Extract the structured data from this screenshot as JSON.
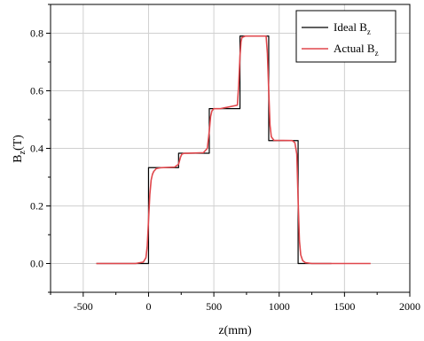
{
  "chart_data": {
    "type": "line",
    "xlabel": "z(mm)",
    "ylabel_main": "B",
    "ylabel_sub": "z",
    "ylabel_suffix": "(T)",
    "xlim": [
      -750,
      2000
    ],
    "ylim": [
      -0.1,
      0.9
    ],
    "xticks": [
      -500,
      0,
      500,
      1000,
      1500,
      2000
    ],
    "yticks": [
      0.0,
      0.2,
      0.4,
      0.6,
      0.8
    ],
    "ytick_labels": [
      "0.0",
      "0.2",
      "0.4",
      "0.6",
      "0.8"
    ],
    "grid": true,
    "legend_position": "top-right",
    "series": [
      {
        "name_main": "Ideal B",
        "name_sub": "z",
        "color": "#000000",
        "x": [
          -400,
          0,
          0,
          230,
          230,
          465,
          465,
          700,
          700,
          920,
          920,
          1145,
          1145,
          1400
        ],
        "y": [
          0,
          0,
          0.333,
          0.333,
          0.383,
          0.383,
          0.538,
          0.538,
          0.79,
          0.79,
          0.427,
          0.427,
          0,
          0
        ]
      },
      {
        "name_main": "Actual B",
        "name_sub": "z",
        "color": "#e0474c",
        "x": [
          -400,
          -100,
          -40,
          -20,
          -10,
          0,
          10,
          20,
          30,
          40,
          60,
          100,
          200,
          230,
          245,
          255,
          275,
          300,
          420,
          450,
          465,
          475,
          485,
          500,
          550,
          680,
          690,
          700,
          708,
          715,
          740,
          900,
          910,
          920,
          930,
          940,
          960,
          1100,
          1120,
          1135,
          1145,
          1155,
          1165,
          1180,
          1200,
          1250,
          1400,
          1700
        ],
        "y": [
          0,
          0,
          0.005,
          0.02,
          0.06,
          0.15,
          0.24,
          0.29,
          0.31,
          0.32,
          0.33,
          0.333,
          0.335,
          0.345,
          0.37,
          0.38,
          0.383,
          0.383,
          0.385,
          0.4,
          0.46,
          0.51,
          0.53,
          0.538,
          0.538,
          0.55,
          0.62,
          0.72,
          0.77,
          0.785,
          0.79,
          0.79,
          0.73,
          0.6,
          0.48,
          0.44,
          0.428,
          0.427,
          0.42,
          0.38,
          0.22,
          0.08,
          0.03,
          0.01,
          0.003,
          0,
          0,
          0
        ]
      }
    ]
  }
}
